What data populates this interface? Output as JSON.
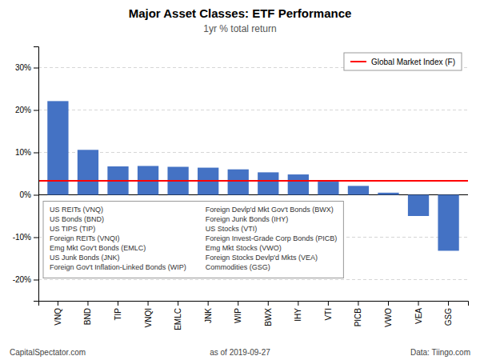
{
  "chart_data": {
    "type": "bar",
    "title": "Major Asset Classes: ETF Performance",
    "subtitle": "1yr % total return",
    "categories": [
      "VNQ",
      "BND",
      "TIP",
      "VNQI",
      "EMLC",
      "JNK",
      "WIP",
      "BWX",
      "IHY",
      "VTI",
      "PICB",
      "VWO",
      "VEA",
      "GSG"
    ],
    "values": [
      22.1,
      10.6,
      6.7,
      6.8,
      6.6,
      6.4,
      6.0,
      5.3,
      4.8,
      3.1,
      2.1,
      0.5,
      -5.0,
      -13.2
    ],
    "color": "#4472C4",
    "ylim": [
      -25,
      35
    ],
    "yticks": [
      {
        "value": -20,
        "label": "-20%"
      },
      {
        "value": -10,
        "label": "-10%"
      },
      {
        "value": 0,
        "label": "0%"
      },
      {
        "value": 10,
        "label": "10%"
      },
      {
        "value": 20,
        "label": "20%"
      },
      {
        "value": 30,
        "label": "30%"
      }
    ],
    "grid": true,
    "reference_line": {
      "name": "Global Market Index (F)",
      "value": 3.3,
      "color": "#FF0000"
    },
    "legend": "upper right",
    "annotation_columns": [
      [
        "US REITs (VNQ)",
        "US Bonds (BND)",
        "US TIPS (TIP)",
        "Foreign REITs (VNQI)",
        "Emg Mkt Gov't Bonds (EMLC)",
        "US Junk Bonds (JNK)",
        "Foreign Gov't Inflation-Linked Bonds (WIP)"
      ],
      [
        "Foreign Devlp'd Mkt Gov't Bonds (BWX)",
        "Foreign Junk Bonds (IHY)",
        "US Stocks (VTI)",
        "Foreign Invest-Grade Corp Bonds (PICB)",
        "Emg Mkt Stocks (VWO)",
        "Foreign Stocks Devlp'd Mkts (VEA)",
        "Commodities (GSG)"
      ]
    ],
    "footer": [
      "CapitalSpectator.com",
      "as of  2019-09-27",
      "Data: Tiingo.com"
    ]
  }
}
